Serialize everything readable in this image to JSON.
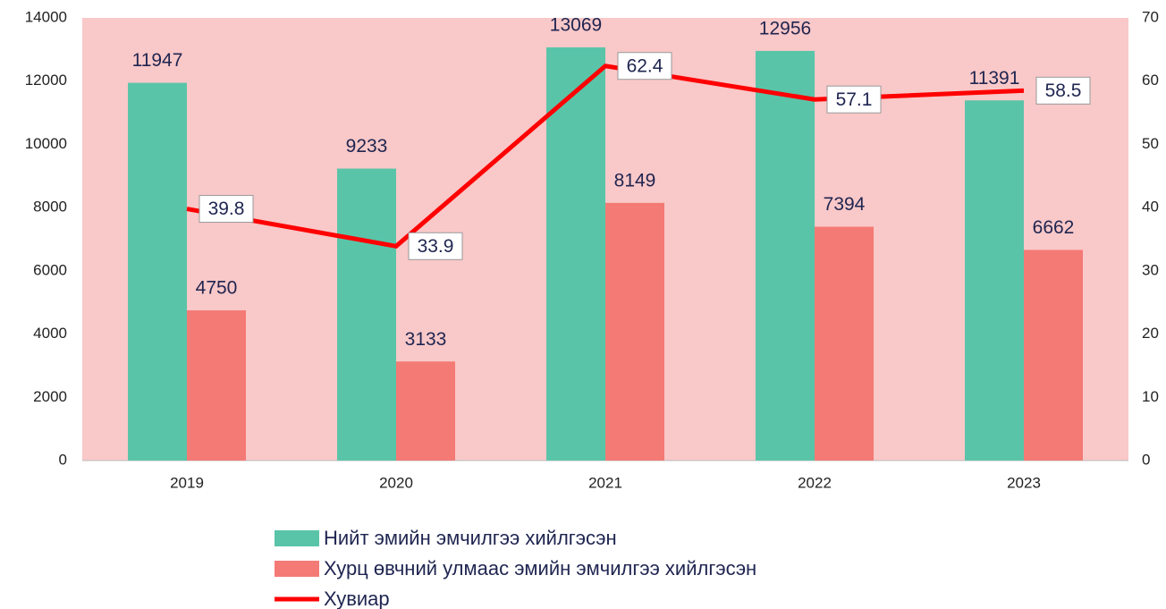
{
  "chart_data": {
    "type": "bar",
    "categories": [
      "2019",
      "2020",
      "2021",
      "2022",
      "2023"
    ],
    "series": [
      {
        "name": "Нийт эмийн эмчилгээ хийлгэсэн",
        "type": "bar",
        "color": "#5ac4a8",
        "values": [
          11947,
          9233,
          13069,
          12956,
          11391
        ]
      },
      {
        "name": "Хурц өвчний улмаас эмийн эмчилгээ хийлгэсэн",
        "type": "bar",
        "color": "#f47a75",
        "values": [
          4750,
          3133,
          8149,
          7394,
          6662
        ]
      },
      {
        "name": "Хувиар",
        "type": "line",
        "axis": "y2",
        "color": "#ff0000",
        "values": [
          39.8,
          33.9,
          62.4,
          57.1,
          58.5
        ]
      }
    ],
    "ylim": [
      0,
      14000
    ],
    "yticks": [
      0,
      2000,
      4000,
      6000,
      8000,
      10000,
      12000,
      14000
    ],
    "y2lim": [
      0,
      70
    ],
    "y2ticks": [
      0,
      10,
      20,
      30,
      40,
      50,
      60,
      70
    ],
    "plot_background": "#f9c8c8"
  }
}
